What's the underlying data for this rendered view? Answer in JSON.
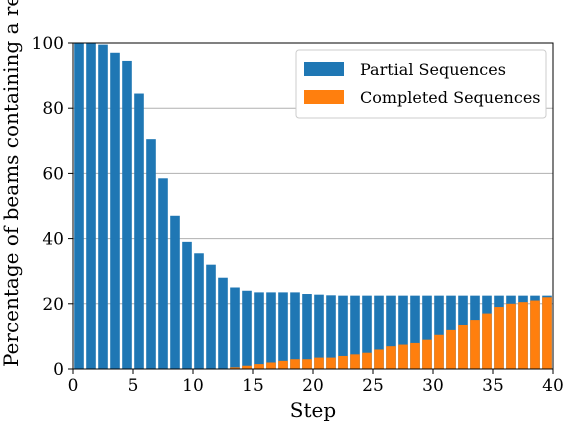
{
  "chart_data": {
    "type": "bar",
    "title": "",
    "xlabel": "Step",
    "ylabel": "Percentage of beams containing a reference",
    "xlim": [
      0,
      40
    ],
    "ylim": [
      0,
      100
    ],
    "xticks": [
      0,
      5,
      10,
      15,
      20,
      25,
      30,
      35,
      40
    ],
    "yticks": [
      0,
      20,
      40,
      60,
      80,
      100
    ],
    "grid": "horizontal",
    "legend_position": "top-right",
    "x": [
      1,
      2,
      3,
      4,
      5,
      6,
      7,
      8,
      9,
      10,
      11,
      12,
      13,
      14,
      15,
      16,
      17,
      18,
      19,
      20,
      21,
      22,
      23,
      24,
      25,
      26,
      27,
      28,
      29,
      30,
      31,
      32,
      33,
      34,
      35,
      36,
      37,
      38,
      39,
      40
    ],
    "series": [
      {
        "name": "Partial Sequences",
        "color": "#1f77b4",
        "values": [
          100,
          100,
          99.5,
          97,
          94.5,
          84.5,
          70.5,
          58.5,
          47,
          39,
          35.5,
          32,
          28,
          25,
          24,
          23.5,
          23.5,
          23.5,
          23.5,
          23,
          22.8,
          22.6,
          22.5,
          22.5,
          22.5,
          22.5,
          22.5,
          22.5,
          22.5,
          22.5,
          22.5,
          22.5,
          22.5,
          22.5,
          22.5,
          22.5,
          22.5,
          22.5,
          22.5,
          22.5
        ]
      },
      {
        "name": "Completed Sequences",
        "color": "#ff7f0e",
        "values": [
          0,
          0,
          0,
          0,
          0,
          0,
          0,
          0,
          0,
          0,
          0,
          0,
          0,
          0.5,
          1,
          1.5,
          2,
          2.5,
          3,
          3,
          3.5,
          3.5,
          4,
          4.5,
          5,
          6,
          7,
          7.5,
          8,
          9,
          10.5,
          12,
          13.5,
          15,
          17,
          19,
          20,
          20.5,
          21,
          22
        ]
      }
    ]
  }
}
